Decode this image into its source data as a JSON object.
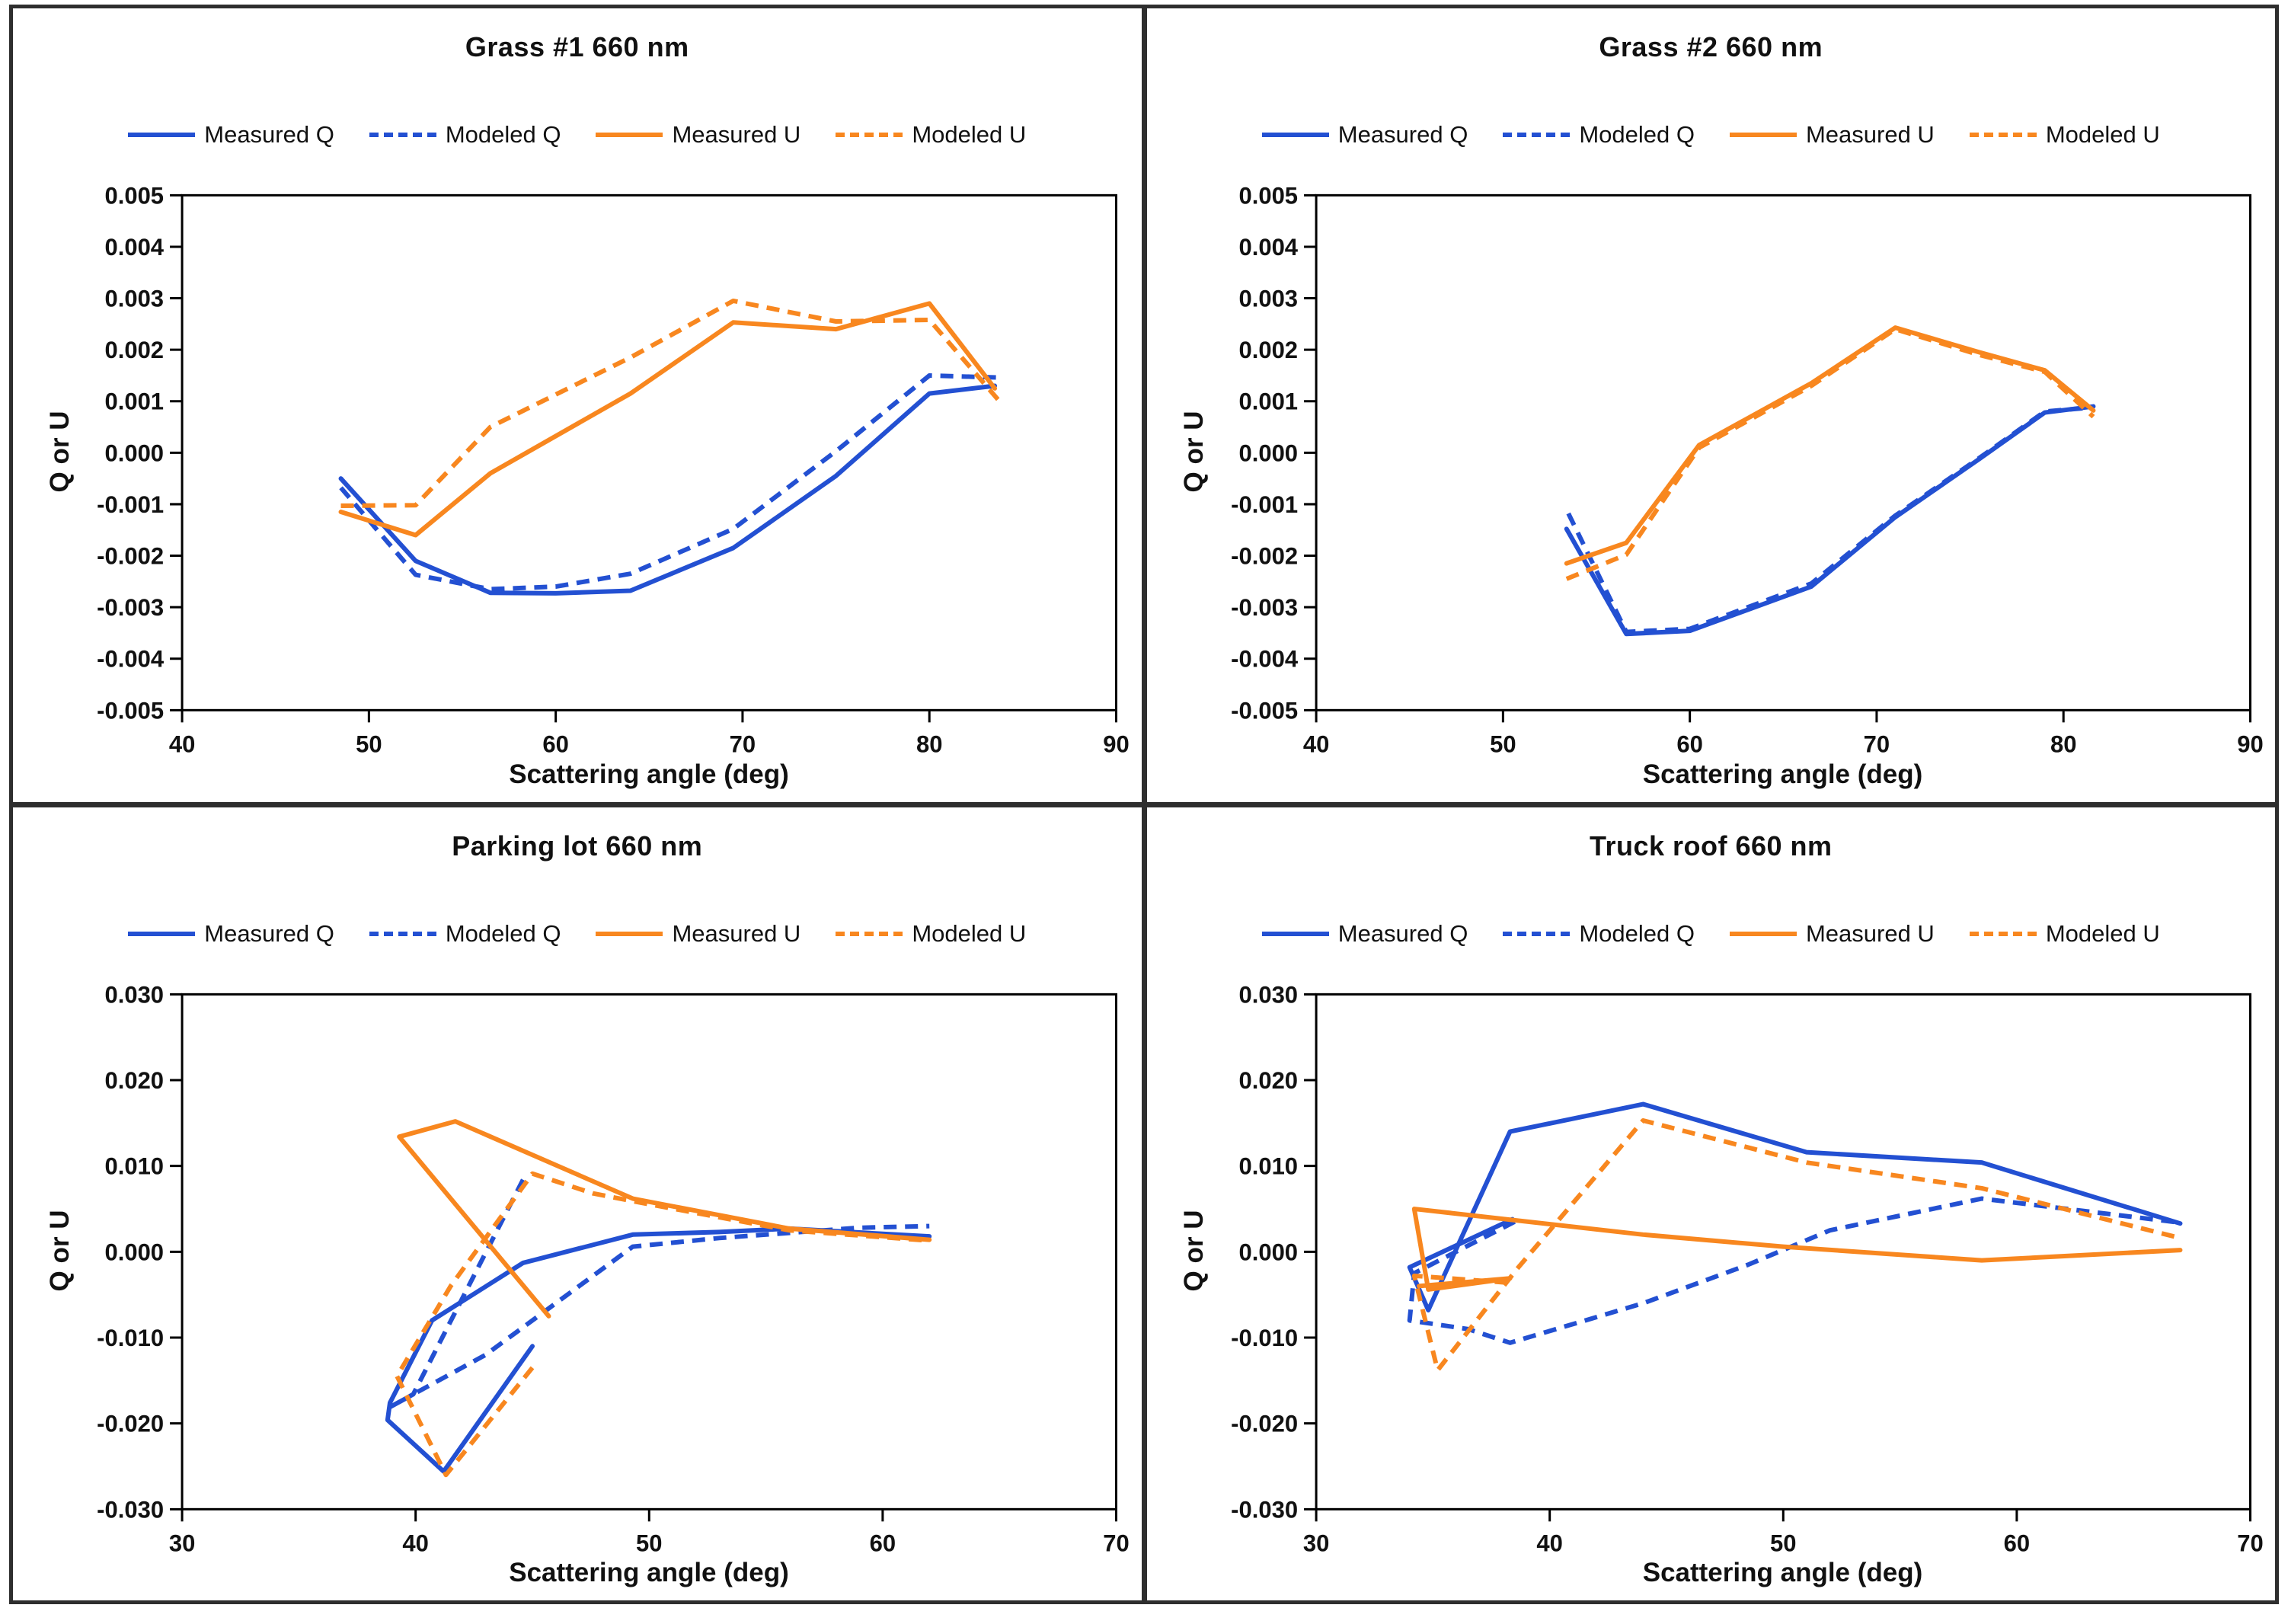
{
  "ui": {
    "background": "#ffffff",
    "frame_color": "#2e2e2e",
    "axis_color": "#000000",
    "text_color": "#111111"
  },
  "colors": {
    "blue": "#2350d2",
    "orange": "#f8871f"
  },
  "chart_data": [
    {
      "type": "line",
      "title": "Grass #1 660 nm",
      "xlabel": "Scattering angle (deg)",
      "ylabel": "Q or U",
      "xlim": [
        40,
        90
      ],
      "ylim": [
        -0.005,
        0.005
      ],
      "xtick_step": 10,
      "ytick_step": 0.001,
      "ytick_decimals": 3,
      "grid": false,
      "legend_position": "top",
      "series": [
        {
          "name": "Measured Q",
          "color": "blue",
          "style": "solid",
          "points": [
            [
              48.5,
              -0.0005
            ],
            [
              52.5,
              -0.0021
            ],
            [
              56.5,
              -0.00272
            ],
            [
              60,
              -0.00273
            ],
            [
              64,
              -0.00268
            ],
            [
              69.5,
              -0.00185
            ],
            [
              75,
              -0.00045
            ],
            [
              80,
              0.00115
            ],
            [
              83.5,
              0.0013
            ]
          ]
        },
        {
          "name": "Modeled Q",
          "color": "blue",
          "style": "dashed",
          "points": [
            [
              48.5,
              -0.00068
            ],
            [
              52.5,
              -0.00237
            ],
            [
              56.5,
              -0.00265
            ],
            [
              60,
              -0.0026
            ],
            [
              64,
              -0.00235
            ],
            [
              69.5,
              -0.00148
            ],
            [
              75,
              3e-05
            ],
            [
              80,
              0.0015
            ],
            [
              83.7,
              0.00146
            ]
          ]
        },
        {
          "name": "Measured U",
          "color": "orange",
          "style": "solid",
          "points": [
            [
              48.5,
              -0.00115
            ],
            [
              52.5,
              -0.0016
            ],
            [
              56.5,
              -0.0004
            ],
            [
              64,
              0.00115
            ],
            [
              69.5,
              0.00253
            ],
            [
              75,
              0.0024
            ],
            [
              80,
              0.0029
            ],
            [
              83.5,
              0.00125
            ]
          ]
        },
        {
          "name": "Modeled U",
          "color": "orange",
          "style": "dashed",
          "points": [
            [
              48.5,
              -0.00103
            ],
            [
              52.5,
              -0.00102
            ],
            [
              56.5,
              0.0005
            ],
            [
              64,
              0.00185
            ],
            [
              69.5,
              0.00295
            ],
            [
              75,
              0.00255
            ],
            [
              80,
              0.00258
            ],
            [
              83.8,
              0.00098
            ]
          ]
        }
      ]
    },
    {
      "type": "line",
      "title": "Grass #2 660 nm",
      "xlabel": "Scattering angle (deg)",
      "ylabel": "Q or U",
      "xlim": [
        40,
        90
      ],
      "ylim": [
        -0.005,
        0.005
      ],
      "xtick_step": 10,
      "ytick_step": 0.001,
      "ytick_decimals": 3,
      "grid": false,
      "legend_position": "top",
      "series": [
        {
          "name": "Measured Q",
          "color": "blue",
          "style": "solid",
          "points": [
            [
              53.4,
              -0.00148
            ],
            [
              56.6,
              -0.00352
            ],
            [
              60,
              -0.00346
            ],
            [
              66.5,
              -0.0026
            ],
            [
              71,
              -0.00125
            ],
            [
              75.5,
              -0.00012
            ],
            [
              79,
              0.00078
            ],
            [
              81.6,
              0.0009
            ]
          ]
        },
        {
          "name": "Modeled Q",
          "color": "blue",
          "style": "dashed",
          "points": [
            [
              53.5,
              -0.00118
            ],
            [
              56.6,
              -0.00348
            ],
            [
              60,
              -0.00342
            ],
            [
              66.5,
              -0.00254
            ],
            [
              71,
              -0.00122
            ],
            [
              75.5,
              -0.0001
            ],
            [
              79,
              0.0008
            ],
            [
              81.6,
              0.00088
            ]
          ]
        },
        {
          "name": "Measured U",
          "color": "orange",
          "style": "solid",
          "points": [
            [
              53.4,
              -0.00215
            ],
            [
              56.6,
              -0.00175
            ],
            [
              60.5,
              0.00015
            ],
            [
              66.5,
              0.00135
            ],
            [
              71,
              0.00243
            ],
            [
              75.5,
              0.00195
            ],
            [
              79,
              0.0016
            ],
            [
              81.6,
              0.00082
            ]
          ]
        },
        {
          "name": "Modeled U",
          "color": "orange",
          "style": "dashed",
          "points": [
            [
              53.4,
              -0.00245
            ],
            [
              56.6,
              -0.00198
            ],
            [
              60.5,
              0.0001
            ],
            [
              66.5,
              0.0013
            ],
            [
              71,
              0.0024
            ],
            [
              75.5,
              0.0019
            ],
            [
              79,
              0.00157
            ],
            [
              81.6,
              0.0007
            ]
          ]
        }
      ]
    },
    {
      "type": "line",
      "title": "Parking lot 660 nm",
      "xlabel": "Scattering angle (deg)",
      "ylabel": "Q or U",
      "xlim": [
        30,
        70
      ],
      "ylim": [
        -0.03,
        0.03
      ],
      "xtick_step": 10,
      "ytick_step": 0.01,
      "ytick_decimals": 3,
      "grid": false,
      "legend_position": "top",
      "series": [
        {
          "name": "Measured Q",
          "color": "blue",
          "style": "solid",
          "points": [
            [
              45.0,
              -0.011
            ],
            [
              41.2,
              -0.0256
            ],
            [
              38.8,
              -0.0196
            ],
            [
              38.9,
              -0.0176
            ],
            [
              40.7,
              -0.008
            ],
            [
              44.6,
              -0.0013
            ],
            [
              49.3,
              0.002
            ],
            [
              53,
              0.0023
            ],
            [
              56,
              0.0027
            ],
            [
              62,
              0.0018
            ]
          ]
        },
        {
          "name": "Modeled Q",
          "color": "blue",
          "style": "dashed",
          "points": [
            [
              44.6,
              0.0084
            ],
            [
              39.9,
              -0.0166
            ],
            [
              38.9,
              -0.0181
            ],
            [
              43,
              -0.012
            ],
            [
              46,
              -0.006
            ],
            [
              49.3,
              0.0006
            ],
            [
              53,
              0.0016
            ],
            [
              56.5,
              0.0023
            ],
            [
              59,
              0.0028
            ],
            [
              62,
              0.003
            ]
          ]
        },
        {
          "name": "Measured U",
          "color": "orange",
          "style": "solid",
          "points": [
            [
              45.7,
              -0.0075
            ],
            [
              39.3,
              0.0134
            ],
            [
              41.7,
              0.0152
            ],
            [
              49.3,
              0.0062
            ],
            [
              56,
              0.0027
            ],
            [
              62,
              0.0014
            ]
          ]
        },
        {
          "name": "Modeled U",
          "color": "orange",
          "style": "dashed",
          "points": [
            [
              45.0,
              -0.0135
            ],
            [
              41.3,
              -0.026
            ],
            [
              39.2,
              -0.0145
            ],
            [
              41.5,
              -0.004
            ],
            [
              45.0,
              0.0091
            ],
            [
              47.6,
              0.0068
            ],
            [
              49.5,
              0.0058
            ],
            [
              56,
              0.0025
            ],
            [
              62,
              0.0013
            ]
          ]
        }
      ]
    },
    {
      "type": "line",
      "title": "Truck roof 660 nm",
      "xlabel": "Scattering angle (deg)",
      "ylabel": "Q or U",
      "xlim": [
        30,
        70
      ],
      "ylim": [
        -0.03,
        0.03
      ],
      "xtick_step": 10,
      "ytick_step": 0.01,
      "ytick_decimals": 3,
      "grid": false,
      "legend_position": "top",
      "series": [
        {
          "name": "Measured Q",
          "color": "blue",
          "style": "solid",
          "points": [
            [
              38.4,
              0.0038
            ],
            [
              34.0,
              -0.0018
            ],
            [
              34.8,
              -0.0068
            ],
            [
              38.3,
              0.014
            ],
            [
              44,
              0.0172
            ],
            [
              51,
              0.0116
            ],
            [
              58.5,
              0.0104
            ],
            [
              67,
              0.0033
            ]
          ]
        },
        {
          "name": "Modeled Q",
          "color": "blue",
          "style": "dashed",
          "points": [
            [
              38.5,
              0.0035
            ],
            [
              34.2,
              -0.0025
            ],
            [
              34.0,
              -0.008
            ],
            [
              36.5,
              -0.009
            ],
            [
              38.3,
              -0.0106
            ],
            [
              44,
              -0.006
            ],
            [
              48.5,
              -0.0015
            ],
            [
              52,
              0.0025
            ],
            [
              58.5,
              0.0062
            ],
            [
              67,
              0.0034
            ]
          ]
        },
        {
          "name": "Measured U",
          "color": "orange",
          "style": "solid",
          "points": [
            [
              34.4,
              -0.004
            ],
            [
              38.3,
              -0.0031
            ],
            [
              34.8,
              -0.0044
            ],
            [
              34.2,
              0.005
            ],
            [
              44,
              0.002
            ],
            [
              50,
              0.0006
            ],
            [
              58.5,
              -0.001
            ],
            [
              67,
              0.0002
            ]
          ]
        },
        {
          "name": "Modeled U",
          "color": "orange",
          "style": "dashed",
          "points": [
            [
              38.2,
              -0.0036
            ],
            [
              34.2,
              -0.0028
            ],
            [
              35.2,
              -0.0138
            ],
            [
              38.6,
              -0.002
            ],
            [
              44,
              0.0153
            ],
            [
              51,
              0.0104
            ],
            [
              58.5,
              0.0074
            ],
            [
              67,
              0.0016
            ]
          ]
        }
      ]
    }
  ]
}
